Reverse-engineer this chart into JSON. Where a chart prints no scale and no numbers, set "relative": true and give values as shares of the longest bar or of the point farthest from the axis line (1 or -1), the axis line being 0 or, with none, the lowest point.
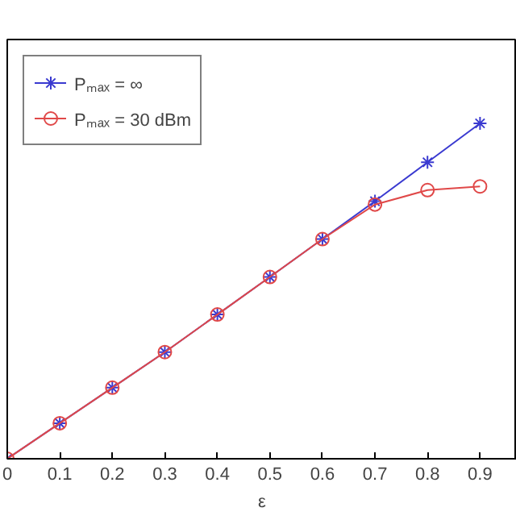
{
  "chart_data": {
    "type": "line",
    "xlabel": "ε",
    "relative": true,
    "x": [
      0,
      0.1,
      0.2,
      0.3,
      0.4,
      0.5,
      0.6,
      0.7,
      0.8,
      0.9
    ],
    "xlim": [
      0,
      0.97
    ],
    "xticks": [
      0,
      0.1,
      0.2,
      0.3,
      0.4,
      0.5,
      0.6,
      0.7,
      0.8,
      0.9
    ],
    "series": [
      {
        "name": "Pₘₐₓ = ∞",
        "color": "#3a3ad0",
        "marker": "cross",
        "values": [
          0,
          0.106,
          0.212,
          0.318,
          0.43,
          0.542,
          0.655,
          0.768,
          0.884,
          1
        ]
      },
      {
        "name": "Pₘₐₓ = 30 dBm",
        "color": "#e04848",
        "marker": "circle",
        "values": [
          0,
          0.106,
          0.212,
          0.318,
          0.43,
          0.542,
          0.655,
          0.758,
          0.801,
          0.812
        ]
      }
    ],
    "line_style": "solid",
    "legend": "top left",
    "grid": false
  }
}
